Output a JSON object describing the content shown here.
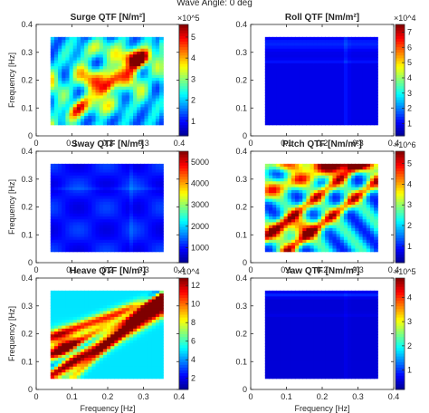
{
  "figure": {
    "suptitle": "Wave Angle: 0 deg",
    "colors": {
      "axis": "#262626",
      "frame": "#ffffff",
      "colormap": [
        "#00008f",
        "#0000ff",
        "#007fff",
        "#00ffff",
        "#7fff7f",
        "#ffff00",
        "#ff7f00",
        "#ff0000",
        "#7f0000"
      ]
    }
  },
  "chart_data": [
    {
      "type": "heatmap",
      "title": "Surge QTF [N/m²]",
      "xlabel": "",
      "ylabel": "Frequency [Hz]",
      "xlim": [
        0,
        0.4
      ],
      "ylim": [
        0,
        0.4
      ],
      "xticks": [
        "0",
        "0.1",
        "0.2",
        "0.3",
        "0.4"
      ],
      "yticks": [
        "0",
        "0.1",
        "0.2",
        "0.3",
        "0.4"
      ],
      "data_extent": {
        "x": [
          0.04,
          0.355
        ],
        "y": [
          0.04,
          0.355
        ]
      },
      "colorbar": {
        "ticks": [
          "1",
          "2",
          "3",
          "4",
          "5"
        ],
        "tick_values": [
          1,
          2,
          3,
          4,
          5
        ],
        "range": [
          0.3,
          5.6
        ],
        "exponent": "×10^5"
      },
      "pattern": "surge"
    },
    {
      "type": "heatmap",
      "title": "Roll QTF [Nm/m²]",
      "xlabel": "",
      "ylabel": "",
      "xlim": [
        0,
        0.4
      ],
      "ylim": [
        0,
        0.4
      ],
      "xticks": [
        "0",
        "0.1",
        "0.2",
        "0.3",
        "0.4"
      ],
      "yticks": [
        "0",
        "0.1",
        "0.2",
        "0.3",
        "0.4"
      ],
      "data_extent": {
        "x": [
          0.04,
          0.355
        ],
        "y": [
          0.04,
          0.355
        ]
      },
      "colorbar": {
        "ticks": [
          "1",
          "2",
          "3",
          "4",
          "5",
          "6",
          "7"
        ],
        "tick_values": [
          1,
          2,
          3,
          4,
          5,
          6,
          7
        ],
        "range": [
          0.2,
          7.5
        ],
        "exponent": "×10^4"
      },
      "pattern": "roll"
    },
    {
      "type": "heatmap",
      "title": "Sway QTF [N/m²]",
      "xlabel": "",
      "ylabel": "Frequency [Hz]",
      "xlim": [
        0,
        0.4
      ],
      "ylim": [
        0,
        0.4
      ],
      "xticks": [
        "0",
        "0.1",
        "0.2",
        "0.3",
        "0.4"
      ],
      "yticks": [
        "0",
        "0.1",
        "0.2",
        "0.3",
        "0.4"
      ],
      "data_extent": {
        "x": [
          0.04,
          0.355
        ],
        "y": [
          0.04,
          0.355
        ]
      },
      "colorbar": {
        "ticks": [
          "1000",
          "2000",
          "3000",
          "4000",
          "5000"
        ],
        "tick_values": [
          1000,
          2000,
          3000,
          4000,
          5000
        ],
        "range": [
          300,
          5500
        ],
        "exponent": ""
      },
      "pattern": "sway"
    },
    {
      "type": "heatmap",
      "title": "Pitch QTF [Nm/m²]",
      "xlabel": "",
      "ylabel": "",
      "xlim": [
        0,
        0.4
      ],
      "ylim": [
        0,
        0.4
      ],
      "xticks": [
        "0",
        "0.1",
        "0.2",
        "0.3",
        "0.4"
      ],
      "yticks": [
        "0",
        "0.1",
        "0.2",
        "0.3",
        "0.4"
      ],
      "data_extent": {
        "x": [
          0.04,
          0.355
        ],
        "y": [
          0.04,
          0.355
        ]
      },
      "colorbar": {
        "ticks": [
          "1",
          "2",
          "3",
          "4",
          "5"
        ],
        "tick_values": [
          1,
          2,
          3,
          4,
          5
        ],
        "range": [
          0.2,
          5.6
        ],
        "exponent": "×10^6"
      },
      "pattern": "pitch"
    },
    {
      "type": "heatmap",
      "title": "Heave QTF [N/m²]",
      "xlabel": "Frequency [Hz]",
      "ylabel": "Frequency [Hz]",
      "xlim": [
        0,
        0.4
      ],
      "ylim": [
        0,
        0.4
      ],
      "xticks": [
        "0",
        "0.1",
        "0.2",
        "0.3",
        "0.4"
      ],
      "yticks": [
        "0",
        "0.1",
        "0.2",
        "0.3",
        "0.4"
      ],
      "data_extent": {
        "x": [
          0.04,
          0.355
        ],
        "y": [
          0.04,
          0.355
        ]
      },
      "colorbar": {
        "ticks": [
          "2",
          "4",
          "6",
          "8",
          "10",
          "12"
        ],
        "tick_values": [
          2,
          4,
          6,
          8,
          10,
          12
        ],
        "range": [
          0.8,
          12.8
        ],
        "exponent": "×10^4"
      },
      "pattern": "heave"
    },
    {
      "type": "heatmap",
      "title": "Yaw QTF [Nm/m²]",
      "xlabel": "Frequency [Hz]",
      "ylabel": "",
      "xlim": [
        0,
        0.4
      ],
      "ylim": [
        0,
        0.4
      ],
      "xticks": [
        "0",
        "0.1",
        "0.2",
        "0.3",
        "0.4"
      ],
      "yticks": [
        "0",
        "0.1",
        "0.2",
        "0.3",
        "0.4"
      ],
      "data_extent": {
        "x": [
          0.04,
          0.355
        ],
        "y": [
          0.04,
          0.355
        ]
      },
      "colorbar": {
        "ticks": [
          "1",
          "2",
          "3",
          "4"
        ],
        "tick_values": [
          1,
          2,
          3,
          4
        ],
        "range": [
          0.2,
          4.8
        ],
        "exponent": "×10^5"
      },
      "pattern": "yaw"
    }
  ]
}
